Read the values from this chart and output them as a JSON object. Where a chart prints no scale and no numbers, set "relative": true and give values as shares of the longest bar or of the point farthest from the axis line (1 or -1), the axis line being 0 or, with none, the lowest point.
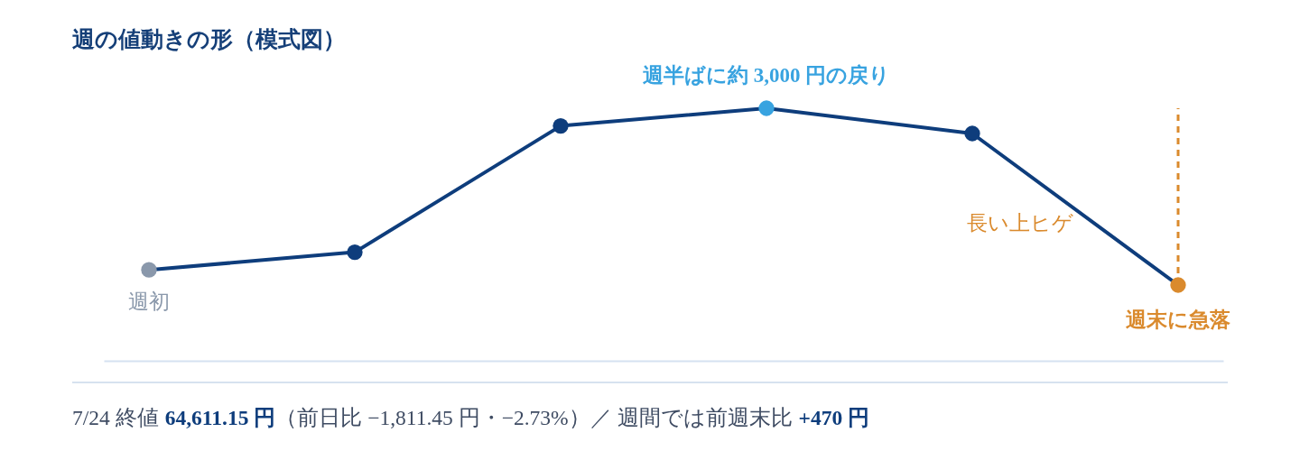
{
  "chart_data": {
    "type": "line",
    "title": "週の値動きの形（模式図）",
    "categories": [
      null,
      null,
      null,
      null,
      null,
      null
    ],
    "relative": true,
    "series": [
      {
        "color": "#0e3d7c",
        "marker": "circle",
        "values": [
          0.36,
          0.43,
          0.93,
          1,
          0.9,
          0.3
        ],
        "colors": [
          "#8a98ab",
          "#0e3d7c",
          "#0e3d7c",
          "#38a3e0",
          "#0e3d7c",
          "#da8a2d"
        ]
      }
    ],
    "annotations": [
      "週初",
      "週半ばに約 3,000 円の戻り",
      "長い上ヒゲ",
      "週末に急落",
      "7/24 終値",
      "64,611.15 円",
      "（前日比 −1,811.45 円・−2.73%）／ 週間では前週末比",
      "+470 円"
    ]
  }
}
